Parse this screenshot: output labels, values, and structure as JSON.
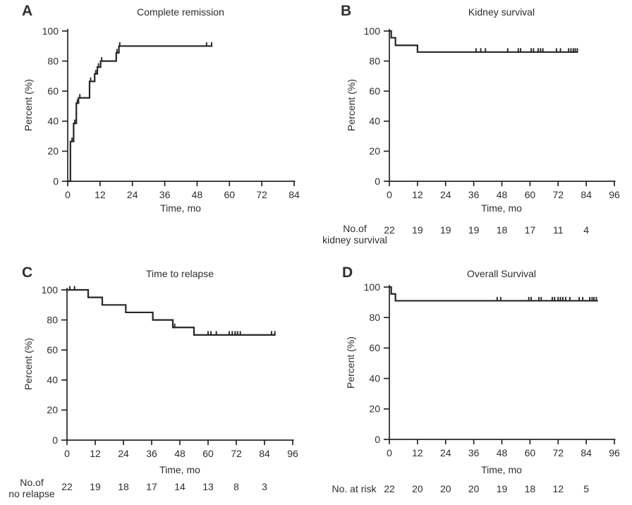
{
  "figure": {
    "background": "#ffffff",
    "line_color": "#262626",
    "text_color": "#2e2e2e",
    "kind": "Kaplan-Meier survival curves, four panels"
  },
  "chart_data": [
    {
      "id": "A",
      "panel_letter": "A",
      "type": "line",
      "km_style": "step",
      "title": "Complete remission",
      "xlabel": "Time, mo",
      "ylabel": "Percent (%)",
      "xlim": [
        0,
        84
      ],
      "ylim": [
        0,
        100
      ],
      "xticks": [
        0,
        12,
        24,
        36,
        48,
        60,
        72,
        84
      ],
      "yticks": [
        0,
        20,
        40,
        60,
        80,
        100
      ],
      "grid": false,
      "legend": null,
      "steps": [
        [
          0,
          0
        ],
        [
          1,
          26.5
        ],
        [
          2.2,
          38.5
        ],
        [
          3.2,
          52
        ],
        [
          4,
          55.5
        ],
        [
          8.1,
          66.5
        ],
        [
          10,
          71.5
        ],
        [
          11,
          76
        ],
        [
          12.2,
          80
        ],
        [
          18,
          85.5
        ],
        [
          19,
          90
        ]
      ],
      "curve_end": 53.7,
      "censor_marks": [
        [
          1.6,
          26.5
        ],
        [
          2.6,
          38.5
        ],
        [
          3.6,
          52
        ],
        [
          4.5,
          55.5
        ],
        [
          8.5,
          66.5
        ],
        [
          10.4,
          71.5
        ],
        [
          11.4,
          76
        ],
        [
          12.6,
          80
        ],
        [
          18.3,
          85.5
        ],
        [
          19.3,
          90
        ],
        [
          51.5,
          90
        ],
        [
          53.4,
          90
        ]
      ],
      "risk_row": null
    },
    {
      "id": "B",
      "panel_letter": "B",
      "type": "line",
      "km_style": "step",
      "title": "Kidney survival",
      "xlabel": "Time, mo",
      "ylabel": "Percent (%)",
      "xlim": [
        0,
        96
      ],
      "ylim": [
        0,
        100
      ],
      "xticks": [
        0,
        12,
        24,
        36,
        48,
        60,
        72,
        84,
        96
      ],
      "yticks": [
        0,
        20,
        40,
        60,
        80,
        100
      ],
      "grid": false,
      "legend": null,
      "steps": [
        [
          0,
          100
        ],
        [
          0.8,
          95.5
        ],
        [
          2.6,
          90.5
        ],
        [
          12,
          86
        ]
      ],
      "curve_end": 80.4,
      "censor_marks": [
        [
          37,
          86
        ],
        [
          39,
          86
        ],
        [
          41,
          86
        ],
        [
          50.5,
          86
        ],
        [
          55,
          86
        ],
        [
          56,
          86
        ],
        [
          60.5,
          86
        ],
        [
          61.5,
          86
        ],
        [
          63.5,
          86
        ],
        [
          64.5,
          86
        ],
        [
          65.5,
          86
        ],
        [
          71.3,
          86
        ],
        [
          73,
          86
        ],
        [
          76.5,
          86
        ],
        [
          77.5,
          86
        ],
        [
          78.5,
          86
        ],
        [
          79.3,
          86
        ],
        [
          80.2,
          86
        ]
      ],
      "risk_row": {
        "label_lines": [
          "No.of",
          "kidney survival"
        ],
        "months": [
          0,
          12,
          24,
          36,
          48,
          60,
          72,
          84
        ],
        "values": [
          22,
          19,
          19,
          19,
          18,
          17,
          11,
          4
        ]
      }
    },
    {
      "id": "C",
      "panel_letter": "C",
      "type": "line",
      "km_style": "step",
      "title": "Time to relapse",
      "xlabel": "Time, mo",
      "ylabel": "Percent (%)",
      "xlim": [
        0,
        96
      ],
      "ylim": [
        0,
        100
      ],
      "xticks": [
        0,
        12,
        24,
        36,
        48,
        60,
        72,
        84,
        96
      ],
      "yticks": [
        0,
        20,
        40,
        60,
        80,
        100
      ],
      "grid": false,
      "legend": null,
      "steps": [
        [
          0,
          100
        ],
        [
          9,
          95
        ],
        [
          15,
          90
        ],
        [
          25,
          85
        ],
        [
          36.5,
          80
        ],
        [
          45,
          75
        ],
        [
          54,
          70
        ]
      ],
      "curve_end": 88.7,
      "censor_marks": [
        [
          1.2,
          100
        ],
        [
          3.2,
          100
        ],
        [
          45.8,
          75
        ],
        [
          60,
          70
        ],
        [
          61.2,
          70
        ],
        [
          63.5,
          70
        ],
        [
          69,
          70
        ],
        [
          70.3,
          70
        ],
        [
          71.5,
          70
        ],
        [
          72.5,
          70
        ],
        [
          73.7,
          70
        ],
        [
          87,
          70
        ],
        [
          88.4,
          70
        ]
      ],
      "risk_row": {
        "label_lines": [
          "No.of",
          "no relapse"
        ],
        "months": [
          0,
          12,
          24,
          36,
          48,
          60,
          72,
          84
        ],
        "values": [
          22,
          19,
          18,
          17,
          14,
          13,
          8,
          3
        ]
      }
    },
    {
      "id": "D",
      "panel_letter": "D",
      "type": "line",
      "km_style": "step",
      "title": "Overall Survival",
      "xlabel": "Time, mo",
      "ylabel": "Percent (%)",
      "xlim": [
        0,
        96
      ],
      "ylim": [
        0,
        100
      ],
      "xticks": [
        0,
        12,
        24,
        36,
        48,
        60,
        72,
        84,
        96
      ],
      "yticks": [
        0,
        20,
        40,
        60,
        80,
        100
      ],
      "grid": false,
      "legend": null,
      "steps": [
        [
          0,
          100
        ],
        [
          0.8,
          95.5
        ],
        [
          2.6,
          91
        ]
      ],
      "curve_end": 89,
      "censor_marks": [
        [
          46,
          91
        ],
        [
          47.5,
          91
        ],
        [
          59.5,
          91
        ],
        [
          60.5,
          91
        ],
        [
          63.8,
          91
        ],
        [
          64.8,
          91
        ],
        [
          69.5,
          91
        ],
        [
          70.5,
          91
        ],
        [
          72,
          91
        ],
        [
          73,
          91
        ],
        [
          74,
          91
        ],
        [
          75.2,
          91
        ],
        [
          77,
          91
        ],
        [
          81,
          91
        ],
        [
          82.5,
          91
        ],
        [
          85.5,
          91
        ],
        [
          86.5,
          91
        ],
        [
          87.3,
          91
        ],
        [
          88.3,
          91
        ]
      ],
      "risk_row": {
        "label_lines": [
          "No. at risk"
        ],
        "months": [
          0,
          12,
          24,
          36,
          48,
          60,
          72,
          84
        ],
        "values": [
          22,
          20,
          20,
          20,
          19,
          18,
          12,
          5
        ]
      }
    }
  ]
}
